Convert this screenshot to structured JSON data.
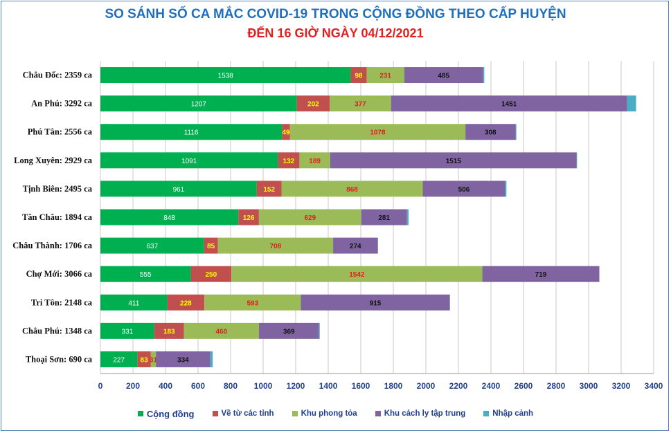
{
  "chart_data": {
    "type": "bar",
    "orientation": "horizontal",
    "stacked": true,
    "title": "SO SÁNH SỐ CA MẮC COVID-19 TRONG CỘNG ĐỒNG THEO CẤP HUYỆN",
    "subtitle": "ĐẾN 16 GIỜ NGÀY 04/12/2021",
    "xlim": [
      0,
      3400
    ],
    "xticks": [
      "0",
      "200",
      "400",
      "600",
      "800",
      "1000",
      "1200",
      "1400",
      "1600",
      "1800",
      "2000",
      "2200",
      "2400",
      "2600",
      "2800",
      "3000",
      "3200",
      "3400"
    ],
    "grid": true,
    "legend_position": "bottom",
    "categories": [
      "Châu Đốc: 2359 ca",
      "An Phú: 3292 ca",
      "Phú Tân: 2556 ca",
      "Long Xuyên: 2929 ca",
      "Tịnh Biên: 2495 ca",
      "Tân Châu: 1894 ca",
      "Châu Thành: 1706 ca",
      "Chợ Mới: 3066 ca",
      "Tri Tôn:  2148 ca",
      "Châu Phú: 1348 ca",
      "Thoại  Sơn: 690 ca"
    ],
    "series": [
      {
        "name": "Cộng đồng",
        "color": "#00b050",
        "label_color": "#ffffff",
        "values": [
          1538,
          1207,
          1116,
          1091,
          961,
          848,
          637,
          555,
          411,
          331,
          227
        ]
      },
      {
        "name": "Về từ các tỉnh",
        "color": "#c0504d",
        "label_color": "#ffff00",
        "values": [
          98,
          202,
          49,
          132,
          152,
          126,
          85,
          250,
          228,
          183,
          83
        ]
      },
      {
        "name": "Khu phong tỏa",
        "color": "#9bbb59",
        "label_color": "#e02020",
        "values": [
          231,
          377,
          1078,
          189,
          868,
          629,
          708,
          1542,
          593,
          460,
          31
        ]
      },
      {
        "name": "Khu cách ly tập trung",
        "color": "#8064a2",
        "label_color": "#111111",
        "values": [
          485,
          1451,
          308,
          1515,
          506,
          281,
          274,
          719,
          915,
          369,
          334
        ]
      },
      {
        "name": "Nhập cảnh",
        "color": "#4bacc6",
        "label_color": "#111111",
        "values": [
          7,
          55,
          5,
          2,
          8,
          10,
          2,
          0,
          1,
          5,
          15
        ]
      }
    ]
  }
}
